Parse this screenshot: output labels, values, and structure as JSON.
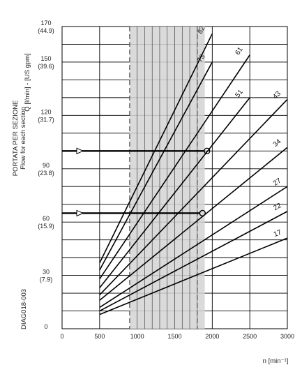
{
  "chart_data": {
    "type": "line",
    "ylabel_it": "PORTATA PER SEZIONE",
    "ylabel_en": "Flow for each section",
    "yunit": "Q [l/min] - [US gpm]",
    "xlabel": "n [min⁻¹]",
    "diagram_code": "DIAG018-003",
    "xlim": [
      0,
      3000
    ],
    "ylim": [
      0,
      170
    ],
    "x_ticks": [
      "0",
      "500",
      "1000",
      "1500",
      "2000",
      "2500",
      "3000"
    ],
    "y_ticks": [
      {
        "v": 0,
        "lpm": "0",
        "gpm": ""
      },
      {
        "v": 30,
        "lpm": "30",
        "gpm": "(7.9)"
      },
      {
        "v": 60,
        "lpm": "60",
        "gpm": "(15.9)"
      },
      {
        "v": 90,
        "lpm": "90",
        "gpm": "(23.8)"
      },
      {
        "v": 120,
        "lpm": "120",
        "gpm": "(31.7)"
      },
      {
        "v": 150,
        "lpm": "150",
        "gpm": "(39.6)"
      },
      {
        "v": 170,
        "lpm": "170",
        "gpm": "(44.9)"
      }
    ],
    "shaded_range": [
      900,
      1900
    ],
    "dashed_marks": [
      900,
      1800
    ],
    "series": [
      {
        "name": "82",
        "x": [
          500,
          2000
        ],
        "y": [
          37,
          166
        ]
      },
      {
        "name": "73",
        "x": [
          500,
          2000
        ],
        "y": [
          33,
          150
        ]
      },
      {
        "name": "61",
        "x": [
          500,
          2500
        ],
        "y": [
          28,
          154
        ]
      },
      {
        "name": "51",
        "x": [
          500,
          2500
        ],
        "y": [
          23,
          130
        ]
      },
      {
        "name": "43",
        "x": [
          500,
          3000
        ],
        "y": [
          19,
          129
        ]
      },
      {
        "name": "34",
        "x": [
          500,
          3000
        ],
        "y": [
          16,
          102
        ]
      },
      {
        "name": "27",
        "x": [
          500,
          3000
        ],
        "y": [
          12,
          80
        ]
      },
      {
        "name": "22",
        "x": [
          500,
          3000
        ],
        "y": [
          10,
          66
        ]
      },
      {
        "name": "17",
        "x": [
          500,
          3000
        ],
        "y": [
          8,
          51
        ]
      }
    ],
    "examples": [
      {
        "y": 100,
        "x_end": 1930
      },
      {
        "y": 65,
        "x_end": 1870
      }
    ]
  }
}
